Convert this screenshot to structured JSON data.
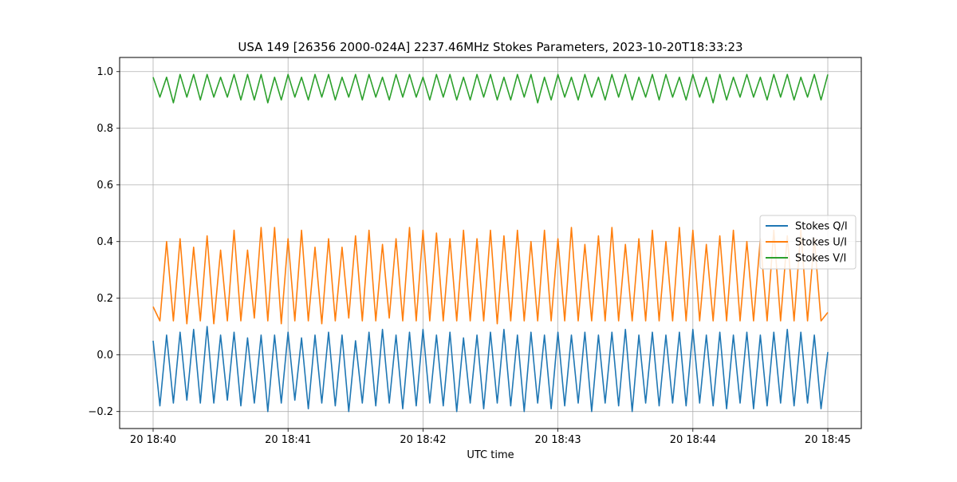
{
  "chart_data": {
    "type": "line",
    "title": "USA 149 [26356 2000-024A] 2237.46MHz Stokes Parameters, 2023-10-20T18:33:23",
    "xlabel": "UTC time",
    "ylabel": "",
    "x_unit": "UTC",
    "x_range": [
      "2023-10-20T18:40:00",
      "2023-10-20T18:45:00"
    ],
    "x_ticks": [
      "20 18:40",
      "20 18:41",
      "20 18:42",
      "20 18:43",
      "20 18:44",
      "20 18:45"
    ],
    "ylim": [
      -0.26,
      1.05
    ],
    "y_ticks": [
      "−0.2",
      "0.0",
      "0.2",
      "0.4",
      "0.6",
      "0.8",
      "1.0"
    ],
    "y_tick_values": [
      -0.2,
      0.0,
      0.2,
      0.4,
      0.6,
      0.8,
      1.0
    ],
    "grid": true,
    "legend_position": "right",
    "oscillation_period_seconds": 6,
    "series": [
      {
        "name": "Stokes Q/I",
        "color": "#1f77b4",
        "values": [
          0.05,
          -0.18,
          0.07,
          -0.17,
          0.08,
          -0.16,
          0.09,
          -0.17,
          0.1,
          -0.17,
          0.07,
          -0.16,
          0.08,
          -0.18,
          0.06,
          -0.17,
          0.07,
          -0.2,
          0.07,
          -0.17,
          0.08,
          -0.16,
          0.06,
          -0.19,
          0.07,
          -0.17,
          0.08,
          -0.18,
          0.07,
          -0.2,
          0.05,
          -0.17,
          0.08,
          -0.18,
          0.09,
          -0.17,
          0.07,
          -0.19,
          0.08,
          -0.18,
          0.09,
          -0.17,
          0.07,
          -0.18,
          0.08,
          -0.2,
          0.06,
          -0.17,
          0.07,
          -0.19,
          0.08,
          -0.17,
          0.09,
          -0.18,
          0.07,
          -0.2,
          0.08,
          -0.17,
          0.07,
          -0.19,
          0.08,
          -0.18,
          0.07,
          -0.17,
          0.08,
          -0.2,
          0.07,
          -0.17,
          0.08,
          -0.18,
          0.09,
          -0.2,
          0.07,
          -0.17,
          0.08,
          -0.18,
          0.07,
          -0.17,
          0.08,
          -0.18,
          0.09,
          -0.17,
          0.07,
          -0.18,
          0.08,
          -0.19,
          0.07,
          -0.17,
          0.08,
          -0.19,
          0.07,
          -0.18,
          0.08,
          -0.17,
          0.09,
          -0.18,
          0.08,
          -0.17,
          0.07,
          -0.19,
          0.01
        ]
      },
      {
        "name": "Stokes U/I",
        "color": "#ff7f0e",
        "values": [
          0.17,
          0.12,
          0.4,
          0.12,
          0.41,
          0.11,
          0.38,
          0.12,
          0.42,
          0.11,
          0.37,
          0.12,
          0.44,
          0.12,
          0.37,
          0.13,
          0.45,
          0.12,
          0.45,
          0.11,
          0.41,
          0.12,
          0.44,
          0.12,
          0.38,
          0.11,
          0.41,
          0.12,
          0.38,
          0.13,
          0.42,
          0.12,
          0.44,
          0.12,
          0.39,
          0.13,
          0.41,
          0.12,
          0.45,
          0.12,
          0.44,
          0.12,
          0.43,
          0.12,
          0.41,
          0.12,
          0.44,
          0.12,
          0.41,
          0.12,
          0.44,
          0.11,
          0.42,
          0.12,
          0.44,
          0.12,
          0.4,
          0.12,
          0.44,
          0.12,
          0.41,
          0.12,
          0.45,
          0.12,
          0.39,
          0.12,
          0.42,
          0.12,
          0.45,
          0.12,
          0.39,
          0.12,
          0.41,
          0.12,
          0.44,
          0.12,
          0.4,
          0.12,
          0.45,
          0.12,
          0.44,
          0.12,
          0.39,
          0.12,
          0.42,
          0.12,
          0.44,
          0.12,
          0.4,
          0.12,
          0.41,
          0.12,
          0.44,
          0.12,
          0.42,
          0.12,
          0.44,
          0.12,
          0.41,
          0.12,
          0.15
        ]
      },
      {
        "name": "Stokes V/I",
        "color": "#2ca02c",
        "values": [
          0.98,
          0.91,
          0.98,
          0.89,
          0.99,
          0.91,
          0.99,
          0.9,
          0.99,
          0.91,
          0.98,
          0.91,
          0.99,
          0.9,
          0.99,
          0.9,
          0.99,
          0.89,
          0.98,
          0.9,
          0.99,
          0.91,
          0.98,
          0.9,
          0.99,
          0.91,
          0.99,
          0.9,
          0.98,
          0.91,
          0.99,
          0.9,
          0.99,
          0.91,
          0.98,
          0.9,
          0.99,
          0.91,
          0.99,
          0.91,
          0.98,
          0.9,
          0.99,
          0.91,
          0.99,
          0.9,
          0.98,
          0.9,
          0.99,
          0.91,
          0.99,
          0.9,
          0.98,
          0.9,
          0.99,
          0.91,
          0.99,
          0.89,
          0.98,
          0.9,
          0.99,
          0.91,
          0.98,
          0.9,
          0.99,
          0.91,
          0.98,
          0.9,
          0.99,
          0.91,
          0.99,
          0.9,
          0.98,
          0.91,
          0.99,
          0.9,
          0.99,
          0.91,
          0.98,
          0.9,
          0.99,
          0.91,
          0.98,
          0.89,
          0.99,
          0.9,
          0.98,
          0.91,
          0.99,
          0.91,
          0.98,
          0.9,
          0.99,
          0.91,
          0.99,
          0.9,
          0.98,
          0.91,
          0.99,
          0.9,
          0.99
        ]
      }
    ]
  }
}
